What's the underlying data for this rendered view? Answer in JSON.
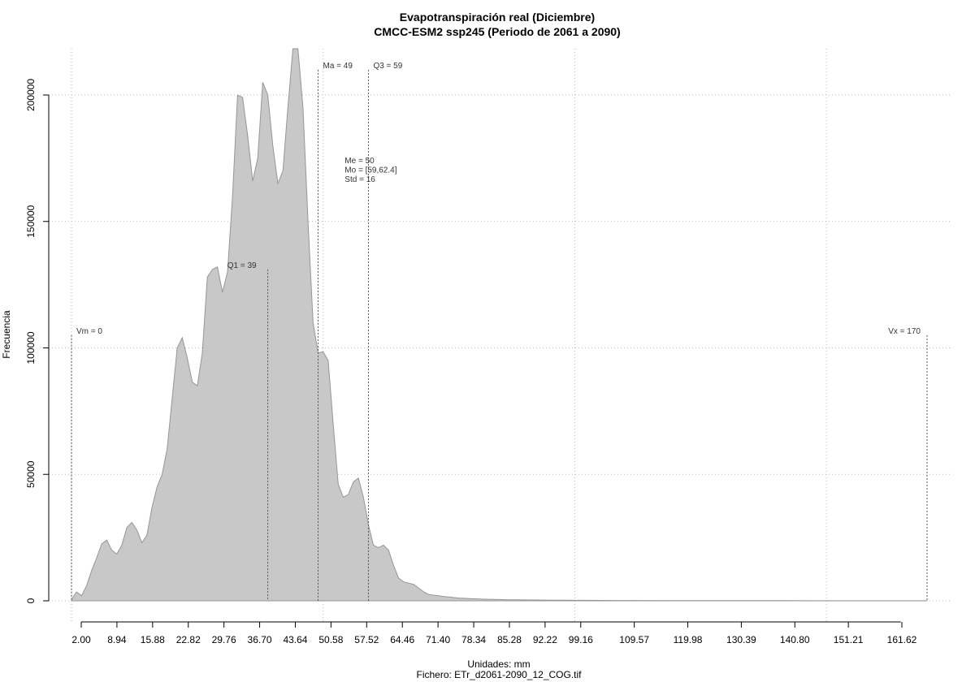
{
  "chart_data": {
    "type": "area",
    "title": "Evapotranspiración real (Diciembre)",
    "subtitle": "CMCC-ESM2 ssp245 (Periodo de 2061 a 2090)",
    "xlabel": "Unidades: mm",
    "ylabel": "Frecuencia",
    "caption": "Fichero: ETr_d2061-2090_12_COG.tif",
    "xlim": [
      0,
      170
    ],
    "ylim": [
      0,
      200000
    ],
    "grid": true,
    "fill_color": "#c8c8c8",
    "line_color": "#969696",
    "x_ticks": [
      "2.00",
      "8.94",
      "15.88",
      "22.82",
      "29.76",
      "36.70",
      "43.64",
      "50.58",
      "57.52",
      "64.46",
      "71.40",
      "78.34",
      "85.28",
      "92.22",
      "99.16",
      "109.57",
      "119.98",
      "130.39",
      "140.80",
      "151.21",
      "161.62"
    ],
    "y_ticks": [
      "0",
      "50000",
      "100000",
      "150000",
      "200000"
    ],
    "x": [
      0,
      1,
      2,
      3,
      4,
      5,
      6,
      7,
      8,
      9,
      10,
      11,
      12,
      13,
      14,
      15,
      16,
      17,
      18,
      19,
      20,
      21,
      22,
      23,
      24,
      25,
      26,
      27,
      28,
      29,
      30,
      31,
      32,
      33,
      34,
      35,
      36,
      37,
      38,
      39,
      40,
      41,
      42,
      43,
      44,
      45,
      46,
      47,
      48,
      49,
      50,
      51,
      52,
      53,
      54,
      55,
      56,
      57,
      58,
      59,
      60,
      61,
      62,
      63,
      64,
      65,
      66,
      67,
      68,
      69,
      70,
      71,
      72,
      73,
      74,
      75,
      76,
      77,
      78,
      79,
      80,
      81,
      82,
      83,
      84,
      85,
      86,
      87,
      88,
      89,
      90,
      92,
      94,
      96,
      98,
      100,
      102,
      105,
      110,
      120,
      130,
      140,
      150,
      160,
      170
    ],
    "y": [
      500,
      3500,
      2000,
      6000,
      12000,
      17000,
      22500,
      24000,
      20000,
      18500,
      22000,
      29000,
      31000,
      28000,
      23000,
      26000,
      37000,
      45000,
      50000,
      60000,
      80000,
      100000,
      104000,
      96000,
      86500,
      85000,
      98000,
      128000,
      131000,
      132000,
      122000,
      130000,
      160000,
      200000,
      199000,
      184000,
      166000,
      175000,
      205000,
      200000,
      180000,
      165000,
      170000,
      195000,
      225000,
      230000,
      195000,
      150000,
      110000,
      98000,
      98500,
      95000,
      70000,
      46000,
      41000,
      42000,
      47000,
      48500,
      41000,
      30000,
      22000,
      21000,
      22000,
      20000,
      14000,
      9000,
      7500,
      7000,
      6500,
      5000,
      3500,
      2500,
      2200,
      2000,
      1700,
      1500,
      1300,
      1100,
      1000,
      900,
      800,
      700,
      650,
      600,
      550,
      500,
      450,
      420,
      400,
      380,
      350,
      320,
      280,
      250,
      220,
      200,
      180,
      150,
      120,
      100,
      80,
      60,
      40,
      30,
      20
    ],
    "annotations": [
      {
        "label": "Vm = 0",
        "x": 0,
        "height": 105000
      },
      {
        "label": "Q1 = 39",
        "x": 39,
        "height": 131000
      },
      {
        "label": "Ma = 49",
        "x": 49,
        "height": 210000
      },
      {
        "label": "Q3 = 59",
        "x": 59,
        "height": 210000
      },
      {
        "label": "Vx = 170",
        "x": 170,
        "height": 105000
      }
    ],
    "stats": [
      "Me = 50",
      "Mo = [59,62.4]",
      "Std = 16"
    ],
    "stats_anchor": {
      "x": 53,
      "y": 173000
    }
  }
}
